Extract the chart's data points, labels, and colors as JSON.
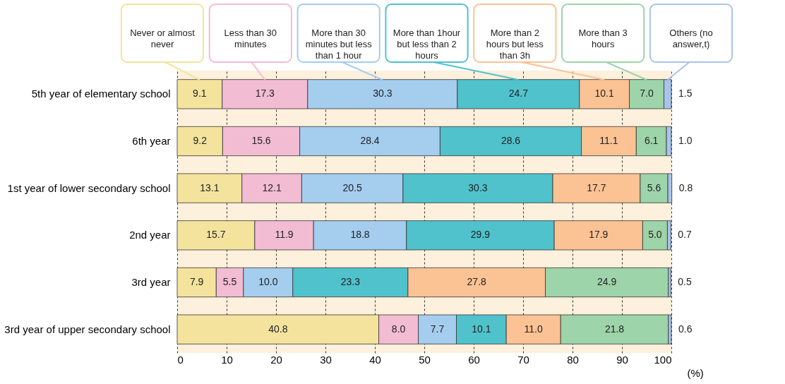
{
  "chart_data": {
    "type": "bar",
    "orientation": "horizontal",
    "stacked": true,
    "legend": "top",
    "grid": "x",
    "xlabel": "(%)",
    "categories": [
      "5th year of elementary school",
      "6th year",
      "1st year of lower secondary school",
      "2nd year",
      "3rd year",
      "3rd year of upper secondary school"
    ],
    "xlim": [
      0,
      100
    ],
    "xticks": [
      0,
      10,
      20,
      30,
      40,
      50,
      60,
      70,
      80,
      90,
      100
    ],
    "series": [
      {
        "name": "Never or almost never",
        "color": "#f3e39d",
        "values": [
          9.1,
          9.2,
          13.1,
          15.7,
          7.9,
          40.8
        ],
        "value_labels": [
          "9.1",
          "9.2",
          "13.1",
          "15.7",
          "7.9",
          "40.8"
        ]
      },
      {
        "name": "Less than 30 minutes",
        "color": "#f2bcd3",
        "values": [
          17.3,
          15.6,
          12.1,
          11.9,
          5.5,
          8.0
        ],
        "value_labels": [
          "17.3",
          "15.6",
          "12.1",
          "11.9",
          "5.5",
          "8.0"
        ]
      },
      {
        "name": "More than 30 minutes but less than 1 hour",
        "color": "#a4cdee",
        "values": [
          30.3,
          28.4,
          20.5,
          18.8,
          10.0,
          7.7
        ],
        "value_labels": [
          "30.3",
          "28.4",
          "20.5",
          "18.8",
          "10.0",
          "7.7"
        ]
      },
      {
        "name": "More than 1hour but less than 2 hours",
        "color": "#50c2cc",
        "values": [
          24.7,
          28.6,
          30.3,
          29.9,
          23.3,
          10.1
        ],
        "value_labels": [
          "24.7",
          "28.6",
          "30.3",
          "29.9",
          "23.3",
          "10.1"
        ]
      },
      {
        "name": "More than 2 hours but less than 3h",
        "color": "#fbc294",
        "values": [
          10.1,
          11.1,
          17.7,
          17.9,
          27.8,
          11.0
        ],
        "value_labels": [
          "10.1",
          "11.1",
          "17.7",
          "17.9",
          "27.8",
          "11.0"
        ]
      },
      {
        "name": "More than 3 hours",
        "color": "#9dd4a9",
        "values": [
          7.0,
          6.1,
          5.6,
          5.0,
          24.9,
          21.8
        ],
        "value_labels": [
          "7.0",
          "6.1",
          "5.6",
          "5.0",
          "24.9",
          "21.8"
        ]
      },
      {
        "name": "Others (no answer,t)",
        "color": "#a9c4ea",
        "values": [
          1.5,
          1.0,
          0.8,
          0.7,
          0.5,
          0.6
        ],
        "value_labels": [
          "1.5",
          "1.0",
          "0.8",
          "0.7",
          "0.5",
          "0.6"
        ]
      }
    ]
  }
}
